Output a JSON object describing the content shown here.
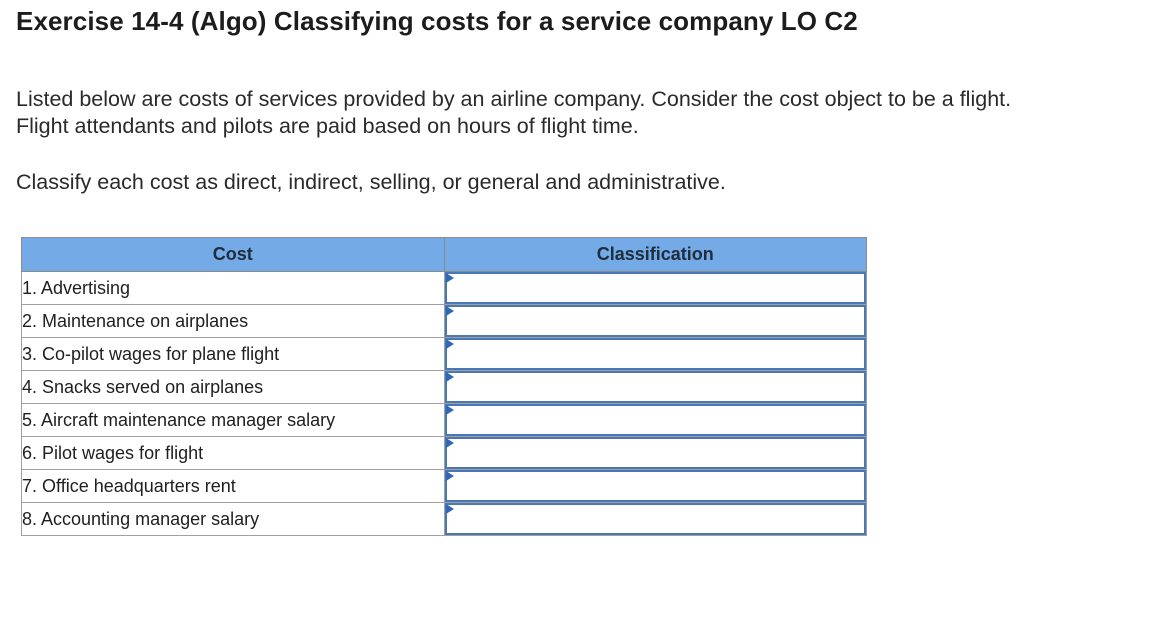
{
  "exercise": {
    "title": "Exercise 14-4 (Algo) Classifying costs for a service company LO C2",
    "instructions_line1": "Listed below are costs of services provided by an airline company. Consider the cost object to be a flight.",
    "instructions_line2": "Flight attendants and pilots are paid based on hours of flight time.",
    "task": "Classify each cost as direct, indirect, selling, or general and administrative."
  },
  "table": {
    "headers": {
      "cost": "Cost",
      "classification": "Classification"
    },
    "rows": [
      {
        "cost": "1. Advertising",
        "classification": ""
      },
      {
        "cost": "2. Maintenance on airplanes",
        "classification": ""
      },
      {
        "cost": "3. Co-pilot wages for plane flight",
        "classification": ""
      },
      {
        "cost": "4. Snacks served on airplanes",
        "classification": ""
      },
      {
        "cost": "5. Aircraft maintenance manager salary",
        "classification": ""
      },
      {
        "cost": "6. Pilot wages for flight",
        "classification": ""
      },
      {
        "cost": "7. Office headquarters rent",
        "classification": ""
      },
      {
        "cost": "8. Accounting manager salary",
        "classification": ""
      }
    ]
  },
  "colors": {
    "header_bg": "#74aae6",
    "dropdown_border": "#4a78b4",
    "dropdown_marker": "#2f68b8"
  },
  "icons": {
    "dropdown_marker": "dropdown-indicator-icon"
  }
}
